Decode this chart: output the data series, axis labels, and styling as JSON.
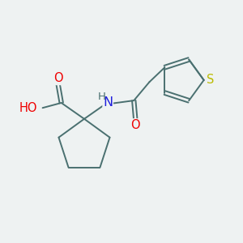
{
  "bg_color": "#eef2f2",
  "bond_color": "#4a7070",
  "bond_width": 1.4,
  "dbo": 0.055,
  "atom_colors": {
    "O": "#ee0000",
    "N": "#2020dd",
    "S": "#bbbb00",
    "H": "#4a7070",
    "C": "#4a7070"
  },
  "font_size": 10.5,
  "figsize": [
    3.0,
    3.0
  ],
  "dpi": 100,
  "xlim": [
    -2.2,
    4.2
  ],
  "ylim": [
    -2.0,
    2.2
  ]
}
